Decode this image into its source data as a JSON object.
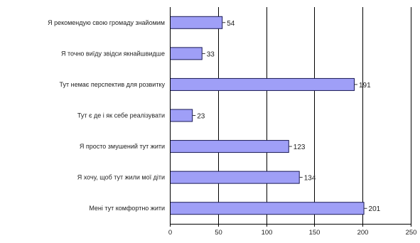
{
  "chart_data": {
    "type": "bar",
    "orientation": "horizontal",
    "title": "",
    "xlabel": "",
    "ylabel": "",
    "categories": [
      "Я рекомендую свою громаду знайомим",
      "Я точно виїду звідси якнайшвидше",
      "Тут немає перспектив для розвитку",
      "Тут є де і як себе реалізувати",
      "Я просто змушений тут жити",
      "Я хочу, щоб тут жили мої діти",
      "Мені тут комфортно жити"
    ],
    "values": [
      54,
      33,
      191,
      23,
      123,
      134,
      201
    ],
    "xlim": [
      0,
      250
    ],
    "xticks": [
      0,
      50,
      100,
      150,
      200,
      250
    ],
    "grid": true,
    "legend": "none",
    "bar_color": "#9f9ff7",
    "bar_edge_color": "#1a1a55"
  }
}
